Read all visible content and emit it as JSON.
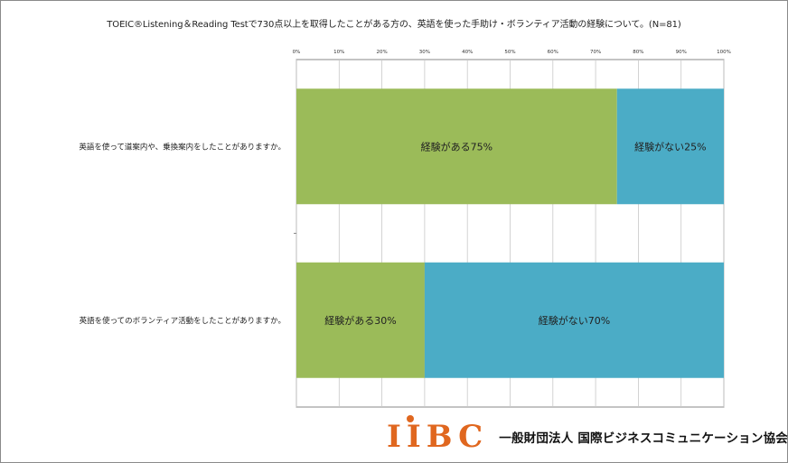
{
  "chart_data": {
    "type": "bar",
    "orientation": "horizontal",
    "stacked": true,
    "title": "TOEIC®Listening＆Reading Testで730点以上を取得したことがある方の、英語を使った手助け・ボランティア活動の経験について。(N=81)",
    "categories": [
      "英語を使って道案内や、乗換案内をしたことがありますか。",
      "英語を使ってのボランティア活動をしたことがありますか。"
    ],
    "series": [
      {
        "name": "経験がある",
        "color": "#9bbb59",
        "values": [
          75,
          30
        ],
        "labels": [
          "経験がある75%",
          "経験がある30%"
        ]
      },
      {
        "name": "経験がない",
        "color": "#4bacc6",
        "values": [
          25,
          70
        ],
        "labels": [
          "経験がない25%",
          "経験がない70%"
        ]
      }
    ],
    "xlim": [
      0,
      100
    ],
    "xticks": [
      "0%",
      "10%",
      "20%",
      "30%",
      "40%",
      "50%",
      "60%",
      "70%",
      "80%",
      "90%",
      "100%"
    ],
    "grid": true
  },
  "footer": {
    "logo": "IIBC",
    "organization": "一般財団法人 国際ビジネスコミュニケーション協会"
  }
}
